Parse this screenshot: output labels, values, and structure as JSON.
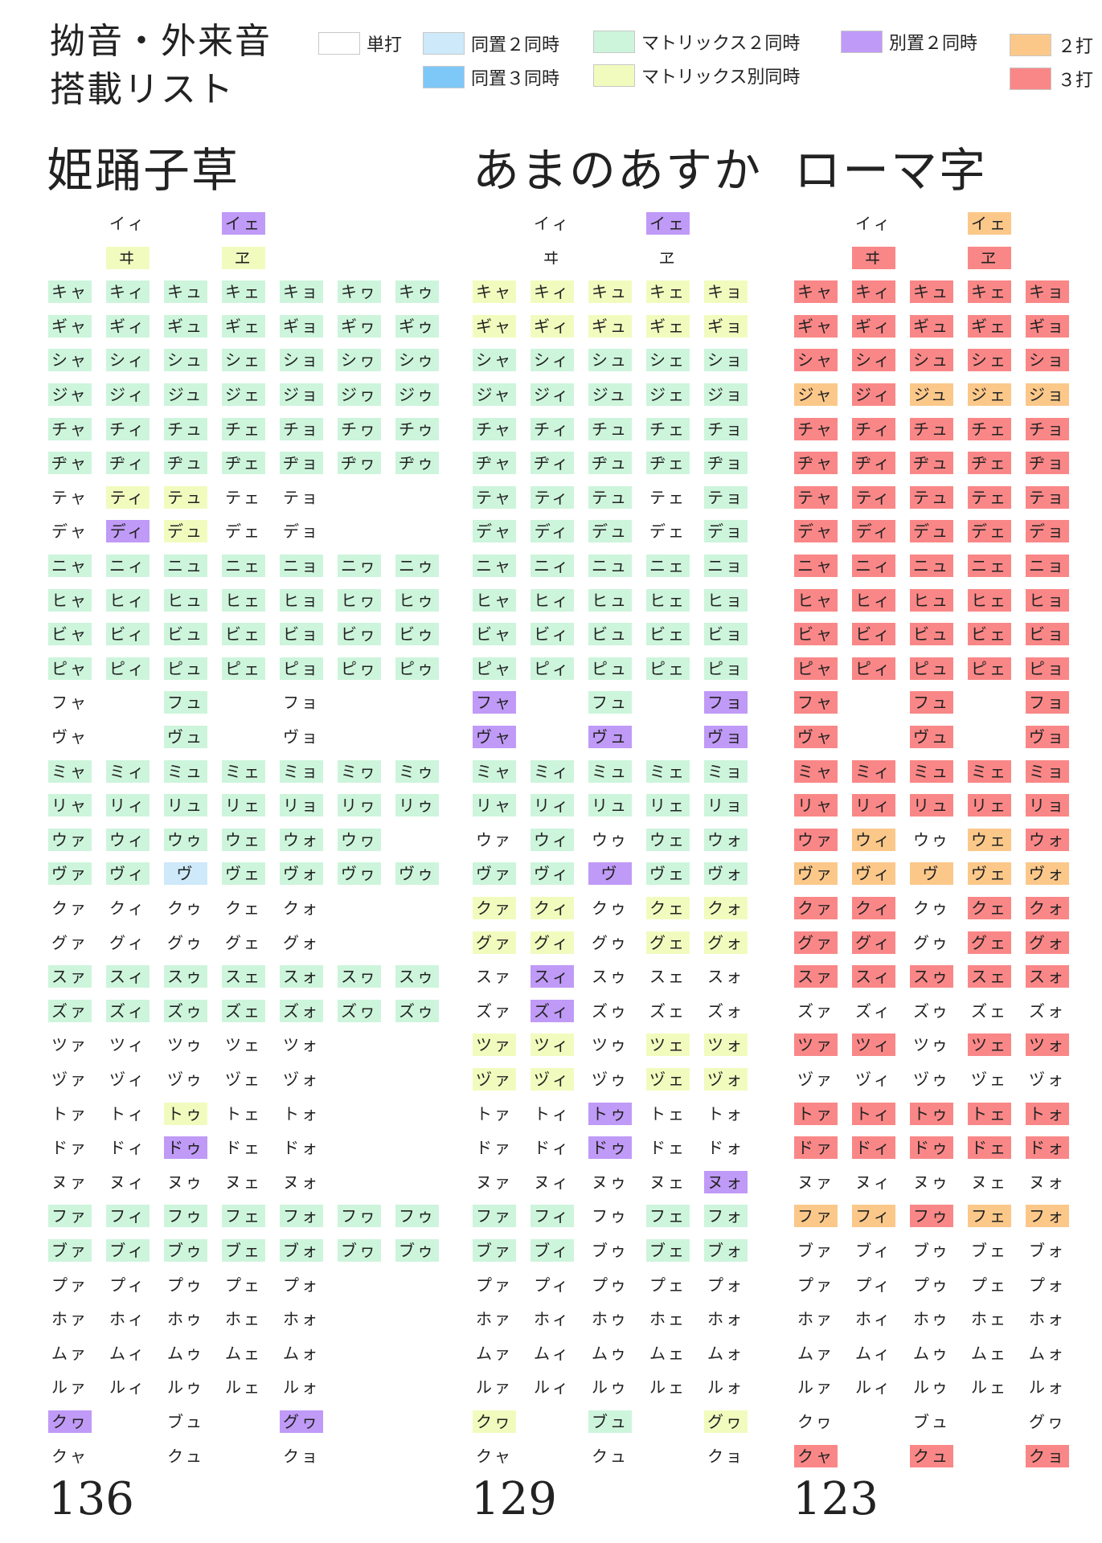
{
  "title_lines": [
    "拗音・外来音",
    "搭載リスト"
  ],
  "colors": {
    "single": "#ffffff",
    "same2": "#cde9fa",
    "same3": "#7ec8f8",
    "matrix2": "#cdf5dc",
    "matrix_sep": "#f2fbbe",
    "sep2": "#c09af7",
    "two_stroke": "#fbc88a",
    "three_stroke": "#fa8787"
  },
  "legend": [
    {
      "key": "single",
      "label": "単打"
    },
    {
      "key": "same2",
      "label": "同置２同時"
    },
    {
      "key": "same3",
      "label": "同置３同時"
    },
    {
      "key": "matrix2",
      "label": "マトリックス２同時"
    },
    {
      "key": "matrix_sep",
      "label": "マトリックス別同時"
    },
    {
      "key": "sep2",
      "label": "別置２同時"
    },
    {
      "key": "two_stroke",
      "label": "２打"
    },
    {
      "key": "three_stroke",
      "label": "３打"
    }
  ],
  "columns": [
    {
      "title": "姫踊子草",
      "total": "136",
      "rows": [
        [
          "",
          "イィ|n",
          "",
          "イェ|v",
          "",
          "",
          ""
        ],
        [
          "",
          "ヰ|y",
          "",
          "ヱ|y",
          "",
          "",
          ""
        ],
        [
          "キャ|g",
          "キィ|g",
          "キュ|g",
          "キェ|g",
          "キョ|g",
          "キヮ|g",
          "キゥ|g"
        ],
        [
          "ギャ|g",
          "ギィ|g",
          "ギュ|g",
          "ギェ|g",
          "ギョ|g",
          "ギヮ|g",
          "ギゥ|g"
        ],
        [
          "シャ|g",
          "シィ|g",
          "シュ|g",
          "シェ|g",
          "ショ|g",
          "シヮ|g",
          "シゥ|g"
        ],
        [
          "ジャ|g",
          "ジィ|g",
          "ジュ|g",
          "ジェ|g",
          "ジョ|g",
          "ジヮ|g",
          "ジゥ|g"
        ],
        [
          "チャ|g",
          "チィ|g",
          "チュ|g",
          "チェ|g",
          "チョ|g",
          "チヮ|g",
          "チゥ|g"
        ],
        [
          "ヂャ|g",
          "ヂィ|g",
          "ヂュ|g",
          "ヂェ|g",
          "ヂョ|g",
          "ヂヮ|g",
          "ヂゥ|g"
        ],
        [
          "テャ|n",
          "ティ|y",
          "テュ|y",
          "テェ|n",
          "テョ|n",
          "",
          ""
        ],
        [
          "デャ|n",
          "ディ|v",
          "デュ|y",
          "デェ|n",
          "デョ|n",
          "",
          ""
        ],
        [
          "ニャ|g",
          "ニィ|g",
          "ニュ|g",
          "ニェ|g",
          "ニョ|g",
          "ニヮ|g",
          "ニゥ|g"
        ],
        [
          "ヒャ|g",
          "ヒィ|g",
          "ヒュ|g",
          "ヒェ|g",
          "ヒョ|g",
          "ヒヮ|g",
          "ヒゥ|g"
        ],
        [
          "ビャ|g",
          "ビィ|g",
          "ビュ|g",
          "ビェ|g",
          "ビョ|g",
          "ビヮ|g",
          "ビゥ|g"
        ],
        [
          "ピャ|g",
          "ピィ|g",
          "ピュ|g",
          "ピェ|g",
          "ピョ|g",
          "ピヮ|g",
          "ピゥ|g"
        ],
        [
          "フャ|n",
          "",
          "フュ|g",
          "",
          "フョ|n",
          "",
          ""
        ],
        [
          "ヴャ|n",
          "",
          "ヴュ|g",
          "",
          "ヴョ|n",
          "",
          ""
        ],
        [
          "ミャ|g",
          "ミィ|g",
          "ミュ|g",
          "ミェ|g",
          "ミョ|g",
          "ミヮ|g",
          "ミゥ|g"
        ],
        [
          "リャ|g",
          "リィ|g",
          "リュ|g",
          "リェ|g",
          "リョ|g",
          "リヮ|g",
          "リゥ|g"
        ],
        [
          "ウァ|g",
          "ウィ|g",
          "ウゥ|g",
          "ウェ|g",
          "ウォ|g",
          "ウヮ|g",
          ""
        ],
        [
          "ヴァ|g",
          "ヴィ|g",
          "ヴ|b",
          "ヴェ|g",
          "ヴォ|g",
          "ヴヮ|g",
          "ヴゥ|g"
        ],
        [
          "クァ|n",
          "クィ|n",
          "クゥ|n",
          "クェ|n",
          "クォ|n",
          "",
          ""
        ],
        [
          "グァ|n",
          "グィ|n",
          "グゥ|n",
          "グェ|n",
          "グォ|n",
          "",
          ""
        ],
        [
          "スァ|g",
          "スィ|g",
          "スゥ|g",
          "スェ|g",
          "スォ|g",
          "スヮ|g",
          "スゥ|g"
        ],
        [
          "ズァ|g",
          "ズィ|g",
          "ズゥ|g",
          "ズェ|g",
          "ズォ|g",
          "ズヮ|g",
          "ズゥ|g"
        ],
        [
          "ツァ|n",
          "ツィ|n",
          "ツゥ|n",
          "ツェ|n",
          "ツォ|n",
          "",
          ""
        ],
        [
          "ヅァ|n",
          "ヅィ|n",
          "ヅゥ|n",
          "ヅェ|n",
          "ヅォ|n",
          "",
          ""
        ],
        [
          "トァ|n",
          "トィ|n",
          "トゥ|y",
          "トェ|n",
          "トォ|n",
          "",
          ""
        ],
        [
          "ドァ|n",
          "ドィ|n",
          "ドゥ|v",
          "ドェ|n",
          "ドォ|n",
          "",
          ""
        ],
        [
          "ヌァ|n",
          "ヌィ|n",
          "ヌゥ|n",
          "ヌェ|n",
          "ヌォ|n",
          "",
          ""
        ],
        [
          "ファ|g",
          "フィ|g",
          "フゥ|g",
          "フェ|g",
          "フォ|g",
          "フヮ|g",
          "フゥ|g"
        ],
        [
          "ブァ|g",
          "ブィ|g",
          "ブゥ|g",
          "ブェ|g",
          "ブォ|g",
          "ブヮ|g",
          "ブゥ|g"
        ],
        [
          "プァ|n",
          "プィ|n",
          "プゥ|n",
          "プェ|n",
          "プォ|n",
          "",
          ""
        ],
        [
          "ホァ|n",
          "ホィ|n",
          "ホゥ|n",
          "ホェ|n",
          "ホォ|n",
          "",
          ""
        ],
        [
          "ムァ|n",
          "ムィ|n",
          "ムゥ|n",
          "ムェ|n",
          "ムォ|n",
          "",
          ""
        ],
        [
          "ルァ|n",
          "ルィ|n",
          "ルゥ|n",
          "ルェ|n",
          "ルォ|n",
          "",
          ""
        ],
        [
          "クヮ|v",
          "",
          "ブュ|n",
          "",
          "グヮ|v",
          "",
          ""
        ],
        [
          "クャ|n",
          "",
          "クュ|n",
          "",
          "クョ|n",
          "",
          ""
        ]
      ]
    },
    {
      "title": "あまのあすか",
      "total": "129",
      "rows": [
        [
          "",
          "イィ|n",
          "",
          "イェ|v",
          ""
        ],
        [
          "",
          "ヰ|n",
          "",
          "ヱ|n",
          ""
        ],
        [
          "キャ|y",
          "キィ|y",
          "キュ|y",
          "キェ|y",
          "キョ|y"
        ],
        [
          "ギャ|y",
          "ギィ|y",
          "ギュ|y",
          "ギェ|y",
          "ギョ|y"
        ],
        [
          "シャ|g",
          "シィ|g",
          "シュ|g",
          "シェ|g",
          "ショ|g"
        ],
        [
          "ジャ|g",
          "ジィ|g",
          "ジュ|g",
          "ジェ|g",
          "ジョ|g"
        ],
        [
          "チャ|g",
          "チィ|g",
          "チュ|g",
          "チェ|g",
          "チョ|g"
        ],
        [
          "ヂャ|g",
          "ヂィ|g",
          "ヂュ|g",
          "ヂェ|g",
          "ヂョ|g"
        ],
        [
          "テャ|g",
          "ティ|g",
          "テュ|g",
          "テェ|n",
          "テョ|g"
        ],
        [
          "デャ|g",
          "ディ|g",
          "デュ|g",
          "デェ|n",
          "デョ|g"
        ],
        [
          "ニャ|g",
          "ニィ|g",
          "ニュ|g",
          "ニェ|g",
          "ニョ|g"
        ],
        [
          "ヒャ|g",
          "ヒィ|g",
          "ヒュ|g",
          "ヒェ|g",
          "ヒョ|g"
        ],
        [
          "ビャ|g",
          "ビィ|g",
          "ビュ|g",
          "ビェ|g",
          "ビョ|g"
        ],
        [
          "ピャ|g",
          "ピィ|g",
          "ピュ|g",
          "ピェ|g",
          "ピョ|g"
        ],
        [
          "フャ|v",
          "",
          "フュ|g",
          "",
          "フョ|v"
        ],
        [
          "ヴャ|v",
          "",
          "ヴュ|v",
          "",
          "ヴョ|v"
        ],
        [
          "ミャ|g",
          "ミィ|g",
          "ミュ|g",
          "ミェ|g",
          "ミョ|g"
        ],
        [
          "リャ|g",
          "リィ|g",
          "リュ|g",
          "リェ|g",
          "リョ|g"
        ],
        [
          "ウァ|n",
          "ウィ|g",
          "ウゥ|n",
          "ウェ|g",
          "ウォ|g"
        ],
        [
          "ヴァ|g",
          "ヴィ|g",
          "ヴ|v",
          "ヴェ|g",
          "ヴォ|g"
        ],
        [
          "クァ|y",
          "クィ|y",
          "クゥ|n",
          "クェ|y",
          "クォ|y"
        ],
        [
          "グァ|y",
          "グィ|y",
          "グゥ|n",
          "グェ|y",
          "グォ|y"
        ],
        [
          "スァ|n",
          "スィ|v",
          "スゥ|n",
          "スェ|n",
          "スォ|n"
        ],
        [
          "ズァ|n",
          "ズィ|v",
          "ズゥ|n",
          "ズェ|n",
          "ズォ|n"
        ],
        [
          "ツァ|y",
          "ツィ|y",
          "ツゥ|n",
          "ツェ|y",
          "ツォ|y"
        ],
        [
          "ヅァ|y",
          "ヅィ|y",
          "ヅゥ|n",
          "ヅェ|y",
          "ヅォ|y"
        ],
        [
          "トァ|n",
          "トィ|n",
          "トゥ|v",
          "トェ|n",
          "トォ|n"
        ],
        [
          "ドァ|n",
          "ドィ|n",
          "ドゥ|v",
          "ドェ|n",
          "ドォ|n"
        ],
        [
          "ヌァ|n",
          "ヌィ|n",
          "ヌゥ|n",
          "ヌェ|n",
          "ヌォ|v"
        ],
        [
          "ファ|g",
          "フィ|g",
          "フゥ|n",
          "フェ|g",
          "フォ|g"
        ],
        [
          "ブァ|g",
          "ブィ|g",
          "ブゥ|n",
          "ブェ|g",
          "ブォ|g"
        ],
        [
          "プァ|n",
          "プィ|n",
          "プゥ|n",
          "プェ|n",
          "プォ|n"
        ],
        [
          "ホァ|n",
          "ホィ|n",
          "ホゥ|n",
          "ホェ|n",
          "ホォ|n"
        ],
        [
          "ムァ|n",
          "ムィ|n",
          "ムゥ|n",
          "ムェ|n",
          "ムォ|n"
        ],
        [
          "ルァ|n",
          "ルィ|n",
          "ルゥ|n",
          "ルェ|n",
          "ルォ|n"
        ],
        [
          "クヮ|y",
          "",
          "ブュ|g",
          "",
          "グヮ|y"
        ],
        [
          "クャ|n",
          "",
          "クュ|n",
          "",
          "クョ|n"
        ]
      ]
    },
    {
      "title": "ローマ字",
      "total": "123",
      "rows": [
        [
          "",
          "イィ|n",
          "",
          "イェ|o",
          ""
        ],
        [
          "",
          "ヰ|r",
          "",
          "ヱ|r",
          ""
        ],
        [
          "キャ|r",
          "キィ|r",
          "キュ|r",
          "キェ|r",
          "キョ|r"
        ],
        [
          "ギャ|r",
          "ギィ|r",
          "ギュ|r",
          "ギェ|r",
          "ギョ|r"
        ],
        [
          "シャ|r",
          "シィ|r",
          "シュ|r",
          "シェ|r",
          "ショ|r"
        ],
        [
          "ジャ|o",
          "ジィ|r",
          "ジュ|o",
          "ジェ|o",
          "ジョ|o"
        ],
        [
          "チャ|r",
          "チィ|r",
          "チュ|r",
          "チェ|r",
          "チョ|r"
        ],
        [
          "ヂャ|r",
          "ヂィ|r",
          "ヂュ|r",
          "ヂェ|r",
          "ヂョ|r"
        ],
        [
          "テャ|r",
          "ティ|r",
          "テュ|r",
          "テェ|r",
          "テョ|r"
        ],
        [
          "デャ|r",
          "ディ|r",
          "デュ|r",
          "デェ|r",
          "デョ|r"
        ],
        [
          "ニャ|r",
          "ニィ|r",
          "ニュ|r",
          "ニェ|r",
          "ニョ|r"
        ],
        [
          "ヒャ|r",
          "ヒィ|r",
          "ヒュ|r",
          "ヒェ|r",
          "ヒョ|r"
        ],
        [
          "ビャ|r",
          "ビィ|r",
          "ビュ|r",
          "ビェ|r",
          "ビョ|r"
        ],
        [
          "ピャ|r",
          "ピィ|r",
          "ピュ|r",
          "ピェ|r",
          "ピョ|r"
        ],
        [
          "フャ|r",
          "",
          "フュ|r",
          "",
          "フョ|r"
        ],
        [
          "ヴャ|r",
          "",
          "ヴュ|r",
          "",
          "ヴョ|r"
        ],
        [
          "ミャ|r",
          "ミィ|r",
          "ミュ|r",
          "ミェ|r",
          "ミョ|r"
        ],
        [
          "リャ|r",
          "リィ|r",
          "リュ|r",
          "リェ|r",
          "リョ|r"
        ],
        [
          "ウァ|r",
          "ウィ|o",
          "ウゥ|n",
          "ウェ|o",
          "ウォ|r"
        ],
        [
          "ヴァ|o",
          "ヴィ|o",
          "ヴ|o",
          "ヴェ|o",
          "ヴォ|o"
        ],
        [
          "クァ|r",
          "クィ|r",
          "クゥ|n",
          "クェ|r",
          "クォ|r"
        ],
        [
          "グァ|r",
          "グィ|r",
          "グゥ|n",
          "グェ|r",
          "グォ|r"
        ],
        [
          "スァ|r",
          "スィ|r",
          "スゥ|r",
          "スェ|r",
          "スォ|r"
        ],
        [
          "ズァ|n",
          "ズィ|n",
          "ズゥ|n",
          "ズェ|n",
          "ズォ|n"
        ],
        [
          "ツァ|r",
          "ツィ|r",
          "ツゥ|n",
          "ツェ|r",
          "ツォ|r"
        ],
        [
          "ヅァ|n",
          "ヅィ|n",
          "ヅゥ|n",
          "ヅェ|n",
          "ヅォ|n"
        ],
        [
          "トァ|r",
          "トィ|r",
          "トゥ|r",
          "トェ|r",
          "トォ|r"
        ],
        [
          "ドァ|r",
          "ドィ|r",
          "ドゥ|r",
          "ドェ|r",
          "ドォ|r"
        ],
        [
          "ヌァ|n",
          "ヌィ|n",
          "ヌゥ|n",
          "ヌェ|n",
          "ヌォ|n"
        ],
        [
          "ファ|o",
          "フィ|o",
          "フゥ|r",
          "フェ|o",
          "フォ|o"
        ],
        [
          "ブァ|n",
          "ブィ|n",
          "ブゥ|n",
          "ブェ|n",
          "ブォ|n"
        ],
        [
          "プァ|n",
          "プィ|n",
          "プゥ|n",
          "プェ|n",
          "プォ|n"
        ],
        [
          "ホァ|n",
          "ホィ|n",
          "ホゥ|n",
          "ホェ|n",
          "ホォ|n"
        ],
        [
          "ムァ|n",
          "ムィ|n",
          "ムゥ|n",
          "ムェ|n",
          "ムォ|n"
        ],
        [
          "ルァ|n",
          "ルィ|n",
          "ルゥ|n",
          "ルェ|n",
          "ルォ|n"
        ],
        [
          "クヮ|n",
          "",
          "ブュ|n",
          "",
          "グヮ|n"
        ],
        [
          "クャ|r",
          "",
          "クュ|r",
          "",
          "クョ|r"
        ]
      ]
    }
  ]
}
